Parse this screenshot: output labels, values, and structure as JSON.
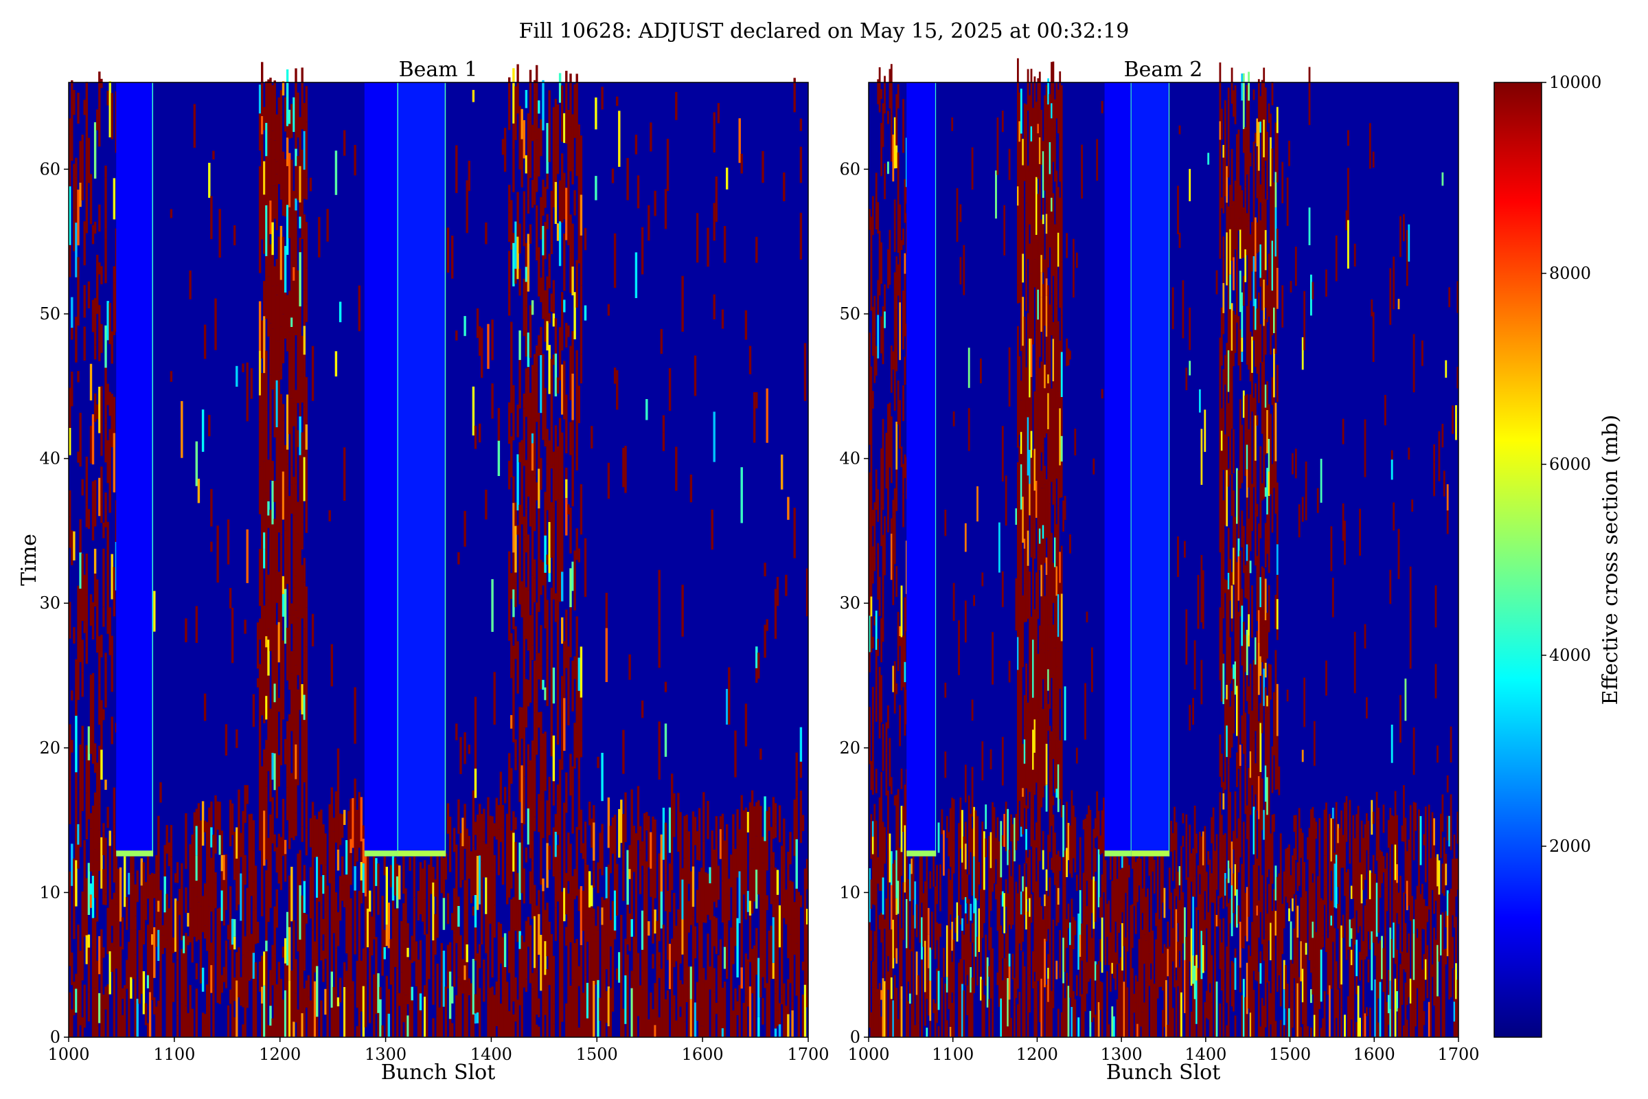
{
  "figure": {
    "suptitle": "Fill 10628: ADJUST declared on May 15, 2025 at 00:32:19"
  },
  "colormap": {
    "name": "jet",
    "stops": [
      "#00007f",
      "#0000ff",
      "#007fff",
      "#00ffff",
      "#7fff7f",
      "#ffff00",
      "#ff7f00",
      "#ff0000",
      "#7f0000"
    ]
  },
  "colorbar": {
    "label": "Effective cross section (mb)",
    "range": [
      0,
      10000
    ],
    "ticks": [
      2000,
      4000,
      6000,
      8000,
      10000
    ],
    "tick_labels": [
      "2000",
      "4000",
      "6000",
      "8000",
      "10000"
    ]
  },
  "chart_data": [
    {
      "type": "heatmap",
      "title": "Beam 1",
      "xlabel": "Bunch Slot",
      "ylabel": "Time",
      "xlim": [
        1000,
        1700
      ],
      "ylim": [
        0,
        66
      ],
      "xticks": [
        1000,
        1100,
        1200,
        1300,
        1400,
        1500,
        1600,
        1700
      ],
      "xtick_labels": [
        "1000",
        "1100",
        "1200",
        "1300",
        "1400",
        "1500",
        "1600",
        "1700"
      ],
      "yticks": [
        0,
        10,
        20,
        30,
        40,
        50,
        60
      ],
      "ytick_labels": [
        "0",
        "10",
        "20",
        "30",
        "40",
        "50",
        "60"
      ],
      "z_range": [
        0,
        10000
      ],
      "background_value": 300,
      "noise_regions": [
        {
          "x": [
            1000,
            1700
          ],
          "y": [
            0,
            15.5
          ],
          "fraction_high": 0.62
        },
        {
          "x": [
            1000,
            1045
          ],
          "y": [
            15.5,
            66
          ],
          "fraction_high": 0.35
        },
        {
          "x": [
            1180,
            1225
          ],
          "y": [
            16,
            66
          ],
          "fraction_high": 0.8
        },
        {
          "x": [
            1415,
            1485
          ],
          "y": [
            16,
            66
          ],
          "fraction_high": 0.55
        },
        {
          "x": [
            1080,
            1700
          ],
          "y": [
            16,
            66
          ],
          "fraction_high": 0.04
        }
      ],
      "empty_gaps": [
        {
          "x": [
            1045,
            1080
          ],
          "y_from": 12.5,
          "value": 1200,
          "edge": 1800
        },
        {
          "x": [
            1280,
            1312
          ],
          "y_from": 12.5,
          "value": 1200,
          "edge": 1800
        },
        {
          "x": [
            1312,
            1357
          ],
          "y_from": 12.5,
          "value": 1500,
          "edge": 2000
        }
      ],
      "transition_time": 16
    },
    {
      "type": "heatmap",
      "title": "Beam 2",
      "xlabel": "Bunch Slot",
      "ylabel": "",
      "xlim": [
        1000,
        1700
      ],
      "ylim": [
        0,
        66
      ],
      "xticks": [
        1000,
        1100,
        1200,
        1300,
        1400,
        1500,
        1600,
        1700
      ],
      "xtick_labels": [
        "1000",
        "1100",
        "1200",
        "1300",
        "1400",
        "1500",
        "1600",
        "1700"
      ],
      "yticks": [
        0,
        10,
        20,
        30,
        40,
        50,
        60
      ],
      "ytick_labels": [
        "0",
        "10",
        "20",
        "30",
        "40",
        "50",
        "60"
      ],
      "z_range": [
        0,
        10000
      ],
      "background_value": 300,
      "noise_regions": [
        {
          "x": [
            1000,
            1700
          ],
          "y": [
            0,
            15.5
          ],
          "fraction_high": 0.62
        },
        {
          "x": [
            1000,
            1045
          ],
          "y": [
            15.5,
            66
          ],
          "fraction_high": 0.35
        },
        {
          "x": [
            1175,
            1230
          ],
          "y": [
            16,
            66
          ],
          "fraction_high": 0.85
        },
        {
          "x": [
            1415,
            1485
          ],
          "y": [
            16,
            66
          ],
          "fraction_high": 0.6
        },
        {
          "x": [
            1080,
            1700
          ],
          "y": [
            16,
            66
          ],
          "fraction_high": 0.04
        }
      ],
      "empty_gaps": [
        {
          "x": [
            1045,
            1080
          ],
          "y_from": 12.5,
          "value": 1200,
          "edge": 1800
        },
        {
          "x": [
            1280,
            1312
          ],
          "y_from": 12.5,
          "value": 1200,
          "edge": 1800
        },
        {
          "x": [
            1312,
            1357
          ],
          "y_from": 12.5,
          "value": 1500,
          "edge": 2000
        }
      ],
      "transition_time": 16
    }
  ]
}
